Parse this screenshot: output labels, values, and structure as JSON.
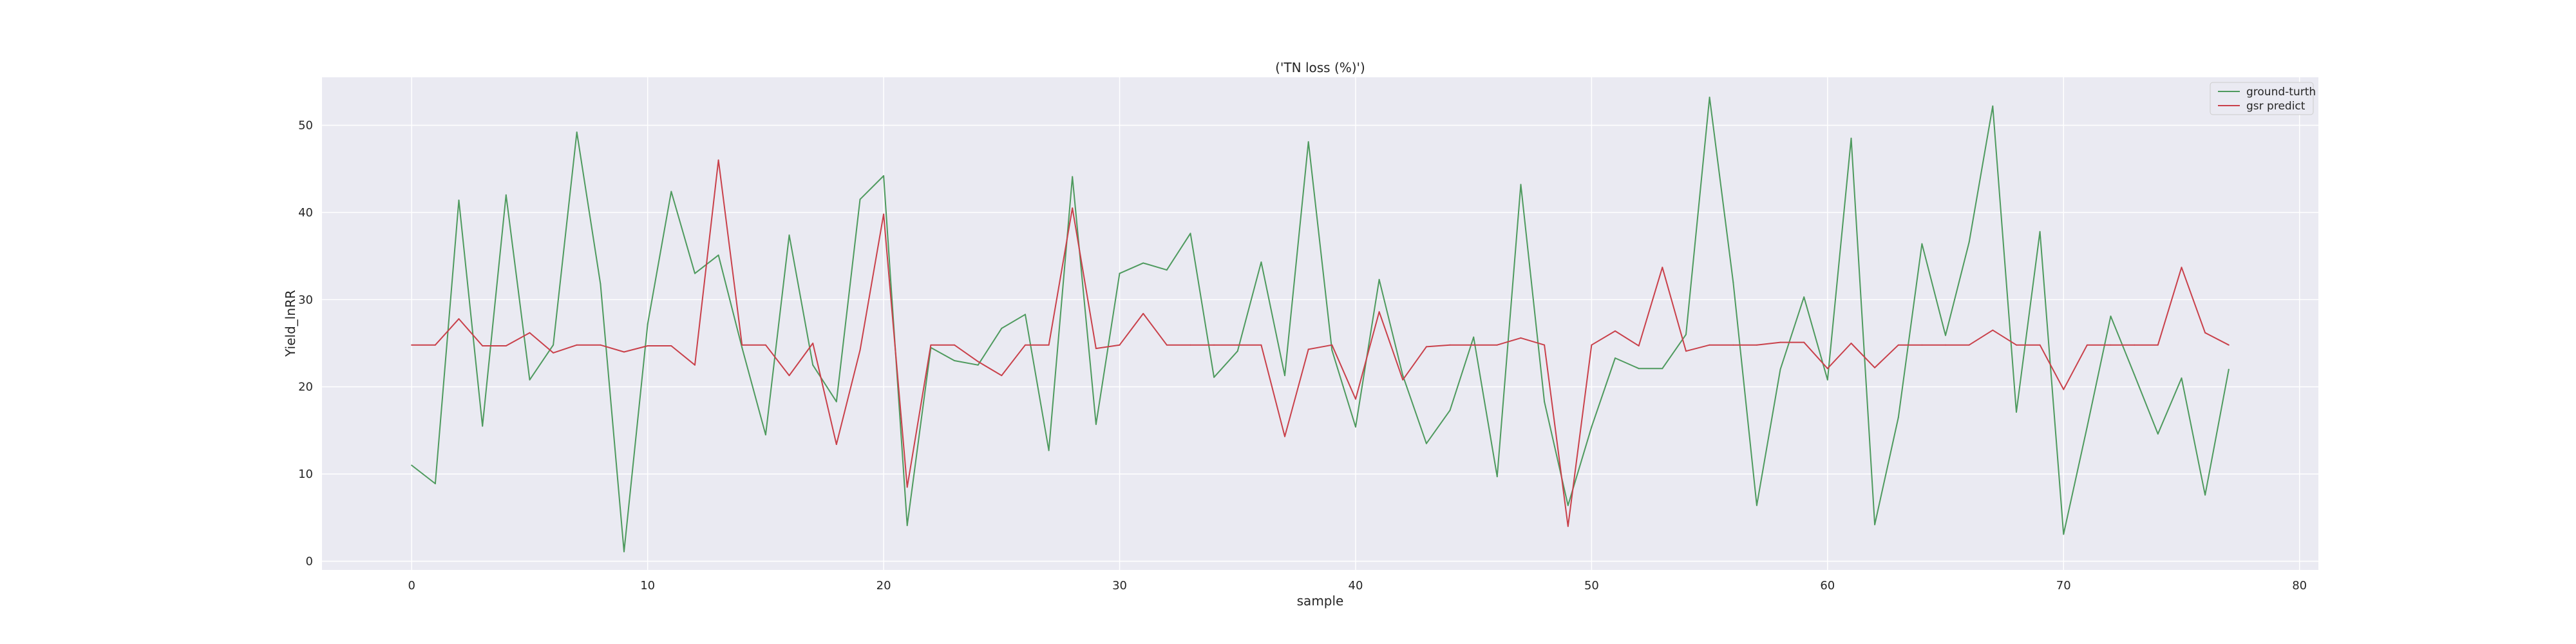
{
  "chart_data": {
    "type": "line",
    "title": "('TN loss (%)')",
    "xlabel": "sample",
    "ylabel": "Yield_lnRR",
    "xlim": [
      -3.8,
      80.8
    ],
    "ylim": [
      -1.0,
      55.5
    ],
    "xticks": [
      0,
      10,
      20,
      30,
      40,
      50,
      60,
      70,
      80
    ],
    "yticks": [
      0,
      10,
      20,
      30,
      40,
      50
    ],
    "grid": true,
    "legend_position": "top-right",
    "x": [
      0,
      1,
      2,
      3,
      4,
      5,
      6,
      7,
      8,
      9,
      10,
      11,
      12,
      13,
      14,
      15,
      16,
      17,
      18,
      19,
      20,
      21,
      22,
      23,
      24,
      25,
      26,
      27,
      28,
      29,
      30,
      31,
      32,
      33,
      34,
      35,
      36,
      37,
      38,
      39,
      40,
      41,
      42,
      43,
      44,
      45,
      46,
      47,
      48,
      49,
      50,
      51,
      52,
      53,
      54,
      55,
      56,
      57,
      58,
      59,
      60,
      61,
      62,
      63,
      64,
      65,
      66,
      67,
      68,
      69,
      70,
      71,
      72,
      73,
      74,
      75,
      76,
      77
    ],
    "series": [
      {
        "name": "ground-turth",
        "color": "#4e9a5e",
        "values": [
          11.0,
          8.9,
          41.4,
          15.5,
          42.0,
          20.8,
          24.8,
          49.2,
          31.8,
          1.1,
          27.2,
          42.4,
          33.0,
          35.1,
          24.5,
          14.5,
          37.4,
          22.5,
          18.3,
          41.5,
          44.2,
          4.1,
          24.5,
          23.0,
          22.5,
          26.7,
          28.3,
          12.7,
          44.1,
          15.7,
          33.0,
          34.2,
          33.4,
          37.6,
          21.1,
          24.1,
          34.3,
          21.3,
          48.1,
          24.2,
          15.4,
          32.3,
          21.3,
          13.5,
          17.3,
          25.7,
          9.7,
          43.2,
          18.3,
          6.4,
          15.4,
          23.3,
          22.1,
          22.1,
          26.0,
          53.2,
          32.0,
          6.4,
          22.0,
          30.3,
          20.8,
          48.5,
          4.2,
          16.5,
          36.4,
          25.9,
          36.6,
          52.2,
          17.1,
          37.8,
          3.1,
          15.4,
          28.1,
          21.4,
          14.6,
          21.0,
          7.6,
          22.0
        ]
      },
      {
        "name": "gsr predict",
        "color": "#c9404a",
        "values": [
          24.8,
          24.8,
          27.8,
          24.7,
          24.7,
          26.2,
          23.9,
          24.8,
          24.8,
          24.0,
          24.7,
          24.7,
          22.5,
          46.0,
          24.8,
          24.8,
          21.3,
          25.0,
          13.4,
          24.2,
          39.8,
          8.5,
          24.8,
          24.8,
          22.9,
          21.3,
          24.8,
          24.8,
          40.5,
          24.4,
          24.8,
          28.4,
          24.8,
          24.8,
          24.8,
          24.8,
          24.8,
          14.3,
          24.3,
          24.8,
          18.6,
          28.6,
          20.8,
          24.6,
          24.8,
          24.8,
          24.8,
          25.6,
          24.8,
          4.0,
          24.8,
          26.4,
          24.7,
          33.7,
          24.1,
          24.8,
          24.8,
          24.8,
          25.1,
          25.1,
          22.1,
          25.0,
          22.2,
          24.8,
          24.8,
          24.8,
          24.8,
          26.5,
          24.8,
          24.8,
          19.7,
          24.8,
          24.8,
          24.8,
          24.8,
          33.7,
          26.2,
          24.8
        ]
      }
    ]
  }
}
